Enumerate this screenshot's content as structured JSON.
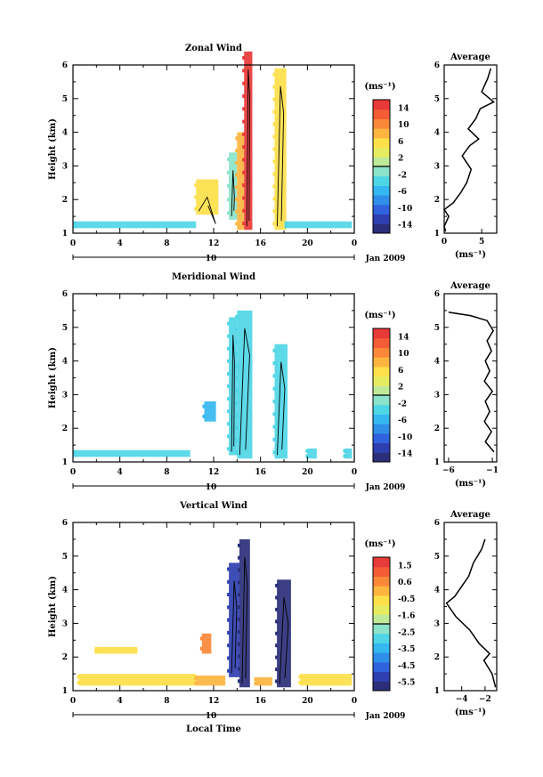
{
  "chart_data": [
    {
      "type": "heatmap",
      "title": "Zonal Wind",
      "ylabel": "Height (km)",
      "xlabel": "",
      "date_label": "10",
      "date_suffix": "Jan 2009",
      "colorbar_label": "(ms⁻¹)",
      "colorbar_ticks": [
        "14",
        "10",
        "6",
        "2",
        "-2",
        "-6",
        "-10",
        "-14"
      ],
      "x_ticks": [
        "0",
        "4",
        "8",
        "12",
        "16",
        "20",
        "0"
      ],
      "y_ticks": [
        "1",
        "2",
        "3",
        "4",
        "5",
        "6"
      ],
      "xlim": [
        0,
        24
      ],
      "ylim": [
        1,
        6
      ],
      "columns": [
        {
          "x0": 0.2,
          "x1": 10.5,
          "y0": 1.15,
          "y1": 1.35,
          "v": -3
        },
        {
          "x0": 10.5,
          "x1": 12.4,
          "y0": 1.55,
          "y1": 2.6,
          "v": 6
        },
        {
          "x0": 13.3,
          "x1": 14.0,
          "y0": 1.4,
          "y1": 3.4,
          "v": -2
        },
        {
          "x0": 14.0,
          "x1": 14.6,
          "y0": 1.1,
          "y1": 4.0,
          "v": 8
        },
        {
          "x0": 14.6,
          "x1": 15.3,
          "y0": 1.1,
          "y1": 6.4,
          "v": 13
        },
        {
          "x0": 17.2,
          "x1": 18.2,
          "y0": 1.1,
          "y1": 5.9,
          "v": 6
        },
        {
          "x0": 18.2,
          "x1": 23.8,
          "y0": 1.15,
          "y1": 1.35,
          "v": -4
        }
      ],
      "profile": {
        "title": "Average",
        "xlabel": "(ms⁻¹)",
        "x_ticks": [
          "0",
          "5"
        ],
        "xlim": [
          0,
          7
        ],
        "ylim": [
          1,
          6
        ],
        "y_ticks": [
          "1",
          "2",
          "3",
          "4",
          "5",
          "6"
        ],
        "points": [
          [
            0.2,
            1.05
          ],
          [
            0.0,
            1.2
          ],
          [
            0.6,
            1.5
          ],
          [
            0.0,
            1.7
          ],
          [
            1.2,
            1.9
          ],
          [
            2.2,
            2.2
          ],
          [
            3.0,
            2.5
          ],
          [
            3.6,
            2.9
          ],
          [
            2.4,
            3.3
          ],
          [
            3.4,
            3.6
          ],
          [
            4.6,
            3.8
          ],
          [
            3.2,
            4.1
          ],
          [
            4.2,
            4.4
          ],
          [
            4.8,
            4.7
          ],
          [
            6.6,
            4.9
          ],
          [
            5.0,
            5.2
          ],
          [
            5.8,
            5.6
          ],
          [
            6.2,
            5.9
          ]
        ]
      }
    },
    {
      "type": "heatmap",
      "title": "Meridional Wind",
      "ylabel": "Height (km)",
      "xlabel": "",
      "date_label": "10",
      "date_suffix": "Jan 2009",
      "colorbar_label": "(ms⁻¹)",
      "colorbar_ticks": [
        "14",
        "10",
        "6",
        "2",
        "-2",
        "-6",
        "-10",
        "-14"
      ],
      "x_ticks": [
        "0",
        "4",
        "8",
        "12",
        "16",
        "20",
        "0"
      ],
      "y_ticks": [
        "1",
        "2",
        "3",
        "4",
        "5",
        "6"
      ],
      "xlim": [
        0,
        24
      ],
      "ylim": [
        1,
        6
      ],
      "columns": [
        {
          "x0": 0.2,
          "x1": 10.0,
          "y0": 1.15,
          "y1": 1.35,
          "v": -3
        },
        {
          "x0": 11.2,
          "x1": 12.2,
          "y0": 2.2,
          "y1": 2.8,
          "v": -5
        },
        {
          "x0": 13.3,
          "x1": 14.0,
          "y0": 1.2,
          "y1": 5.3,
          "v": -4
        },
        {
          "x0": 14.0,
          "x1": 15.3,
          "y0": 1.1,
          "y1": 5.5,
          "v": -3
        },
        {
          "x0": 17.2,
          "x1": 18.3,
          "y0": 1.1,
          "y1": 4.5,
          "v": -4
        },
        {
          "x0": 20.0,
          "x1": 20.8,
          "y0": 1.1,
          "y1": 1.4,
          "v": -3
        },
        {
          "x0": 23.2,
          "x1": 23.8,
          "y0": 1.1,
          "y1": 1.4,
          "v": -3
        }
      ],
      "profile": {
        "title": "Average",
        "xlabel": "(ms⁻¹)",
        "x_ticks": [
          "−6",
          "−1"
        ],
        "xlim": [
          -6.5,
          -0.5
        ],
        "ylim": [
          1,
          6
        ],
        "y_ticks": [
          "1",
          "2",
          "3",
          "4",
          "5",
          "6"
        ],
        "points": [
          [
            -6.0,
            5.45
          ],
          [
            -3.5,
            5.35
          ],
          [
            -1.6,
            5.2
          ],
          [
            -0.9,
            4.9
          ],
          [
            -1.6,
            4.6
          ],
          [
            -1.1,
            4.3
          ],
          [
            -1.8,
            4.0
          ],
          [
            -1.3,
            3.7
          ],
          [
            -1.9,
            3.4
          ],
          [
            -1.0,
            3.1
          ],
          [
            -1.8,
            2.8
          ],
          [
            -1.3,
            2.5
          ],
          [
            -1.9,
            2.2
          ],
          [
            -1.1,
            1.9
          ],
          [
            -1.8,
            1.6
          ],
          [
            -0.8,
            1.3
          ]
        ]
      }
    },
    {
      "type": "heatmap",
      "title": "Vertical Wind",
      "ylabel": "Height (km)",
      "xlabel": "Local Time",
      "date_label": "10",
      "date_suffix": "Jan 2009",
      "colorbar_label": "(ms⁻¹)",
      "colorbar_ticks": [
        "1.5",
        "0.6",
        "-0.5",
        "-1.6",
        "-2.5",
        "-3.5",
        "-4.5",
        "-5.5"
      ],
      "x_ticks": [
        "0",
        "4",
        "8",
        "12",
        "16",
        "20",
        "0"
      ],
      "y_ticks": [
        "1",
        "2",
        "3",
        "4",
        "5",
        "6"
      ],
      "xlim": [
        0,
        24
      ],
      "ylim": [
        1,
        6
      ],
      "columns": [
        {
          "x0": 0.5,
          "x1": 10.5,
          "y0": 1.15,
          "y1": 1.5,
          "v": -0.8
        },
        {
          "x0": 2.0,
          "x1": 5.5,
          "y0": 2.1,
          "y1": 2.3,
          "v": -0.8
        },
        {
          "x0": 10.5,
          "x1": 13.0,
          "y0": 1.15,
          "y1": 1.45,
          "v": 0.2
        },
        {
          "x0": 11.0,
          "x1": 11.8,
          "y0": 2.1,
          "y1": 2.7,
          "v": 0.3
        },
        {
          "x0": 13.3,
          "x1": 14.2,
          "y0": 1.4,
          "y1": 4.8,
          "v": -5.2
        },
        {
          "x0": 14.2,
          "x1": 15.1,
          "y0": 1.1,
          "y1": 5.5,
          "v": -5.6
        },
        {
          "x0": 15.6,
          "x1": 17.0,
          "y0": 1.15,
          "y1": 1.4,
          "v": 0.2
        },
        {
          "x0": 17.4,
          "x1": 18.6,
          "y0": 1.1,
          "y1": 4.3,
          "v": -5.6
        },
        {
          "x0": 19.4,
          "x1": 23.8,
          "y0": 1.15,
          "y1": 1.5,
          "v": -0.6
        }
      ],
      "profile": {
        "title": "Average",
        "xlabel": "(ms⁻¹)",
        "x_ticks": [
          "−4",
          "−2"
        ],
        "xlim": [
          -5.5,
          -1.0
        ],
        "ylim": [
          1,
          6
        ],
        "y_ticks": [
          "1",
          "2",
          "3",
          "4",
          "5",
          "6"
        ],
        "points": [
          [
            -2.0,
            5.5
          ],
          [
            -2.3,
            5.2
          ],
          [
            -3.0,
            4.8
          ],
          [
            -3.4,
            4.4
          ],
          [
            -4.0,
            4.1
          ],
          [
            -4.6,
            3.8
          ],
          [
            -5.3,
            3.6
          ],
          [
            -4.5,
            3.2
          ],
          [
            -3.3,
            2.8
          ],
          [
            -2.5,
            2.4
          ],
          [
            -1.6,
            2.1
          ],
          [
            -2.1,
            1.9
          ],
          [
            -1.4,
            1.5
          ],
          [
            -1.1,
            1.1
          ]
        ]
      }
    }
  ],
  "colors": {
    "colorbar_wind": [
      "#2b2f7a",
      "#2e3fb0",
      "#2f62dc",
      "#2f8fe8",
      "#35b7f0",
      "#4fd6e6",
      "#8be3c9",
      "#bfea9a",
      "#e6ec5f",
      "#fde04a",
      "#fdb540",
      "#fb8838",
      "#f45c36",
      "#e83a38"
    ],
    "colorbar_vertical": [
      "#2b2f7a",
      "#2e3fb0",
      "#2f62dc",
      "#2f8fe8",
      "#35b7f0",
      "#4fd6e6",
      "#8be3c9",
      "#bfea9a",
      "#e6ec5f",
      "#fde04a",
      "#fdb540",
      "#fb8838",
      "#f45c36",
      "#e83a38"
    ]
  }
}
